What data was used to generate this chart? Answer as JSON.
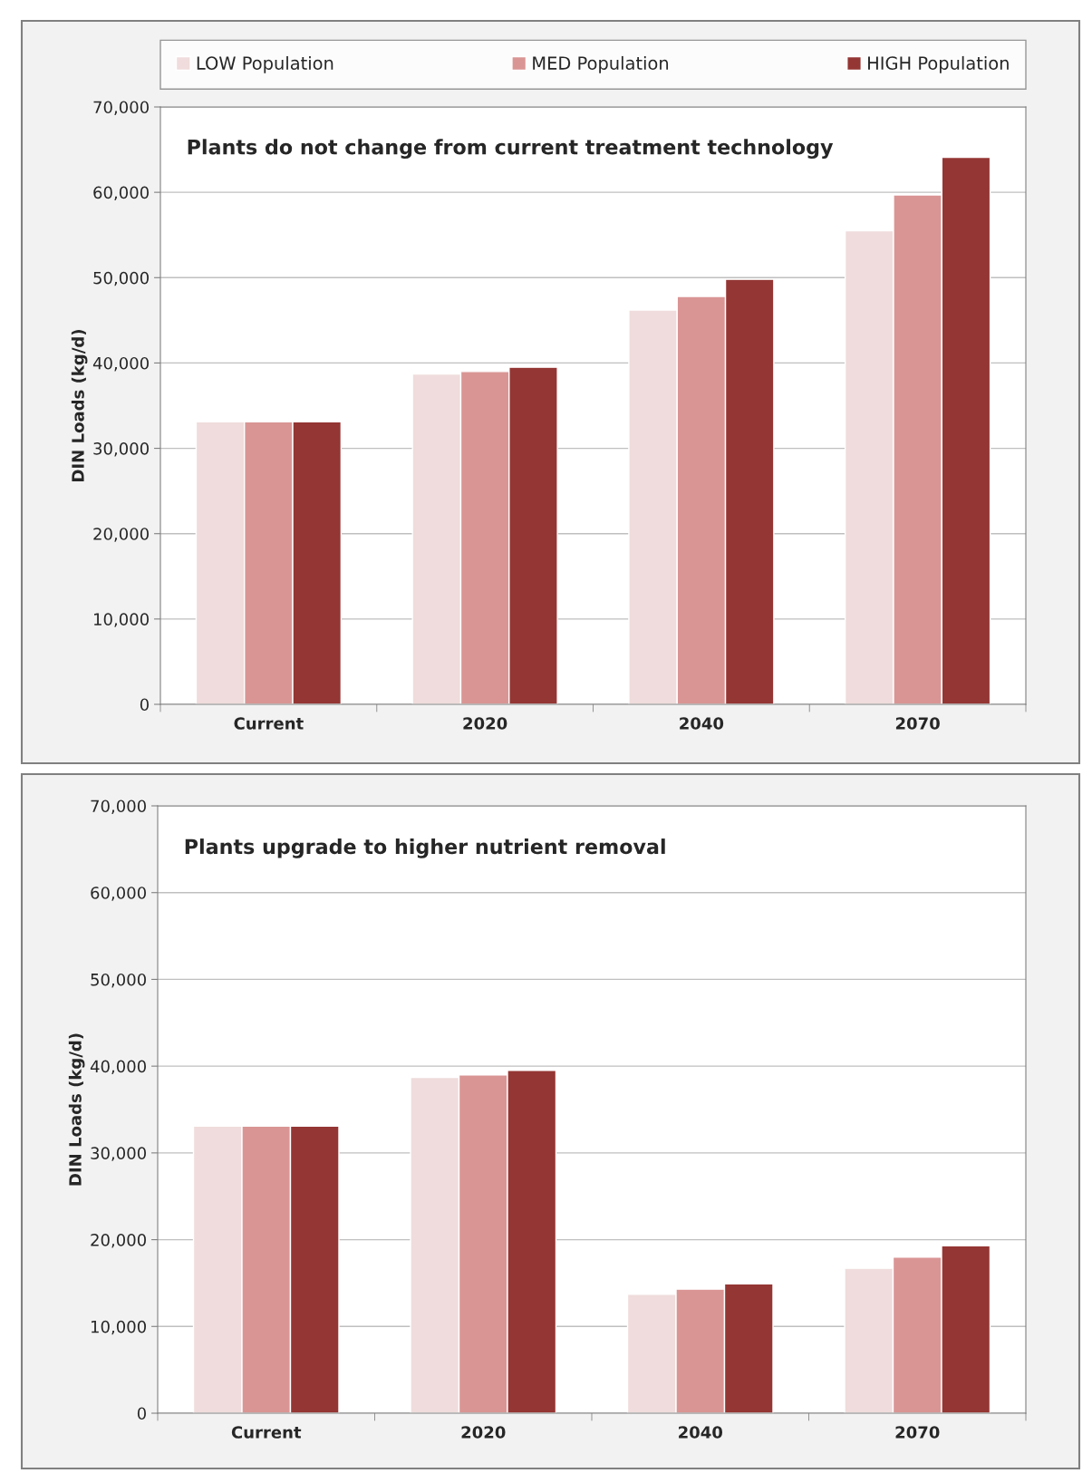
{
  "chart_data": [
    {
      "type": "bar",
      "title": "Plants do not change from current treatment technology",
      "ylabel": "DIN Loads (kg/d)",
      "categories": [
        "Current",
        "2020",
        "2040",
        "2070"
      ],
      "series": [
        {
          "name": "LOW Population",
          "color": "#f0dcdc",
          "values": [
            33100,
            38700,
            46200,
            55500
          ]
        },
        {
          "name": "MED Population",
          "color": "#d99594",
          "values": [
            33100,
            39000,
            47800,
            59700
          ]
        },
        {
          "name": "HIGH Population",
          "color": "#943634",
          "values": [
            33100,
            39500,
            49800,
            64100
          ]
        }
      ],
      "ylim": [
        0,
        70000
      ],
      "yticks": [
        0,
        {
          "value": 10000,
          "label": "10,000"
        },
        {
          "value": 20000,
          "label": "20,000"
        },
        {
          "value": 30000,
          "label": "30,000"
        },
        {
          "value": 40000,
          "label": "40,000"
        },
        {
          "value": 50000,
          "label": "50,000"
        },
        {
          "value": 60000,
          "label": "60,000"
        },
        {
          "value": 70000,
          "label": "70,000"
        }
      ],
      "grid": "y",
      "legend": "top"
    },
    {
      "type": "bar",
      "title": "Plants upgrade to higher nutrient removal",
      "ylabel": "DIN Loads (kg/d)",
      "categories": [
        "Current",
        "2020",
        "2040",
        "2070"
      ],
      "series": [
        {
          "color": "#f0dcdc",
          "values": [
            33100,
            38700,
            13700,
            16700
          ]
        },
        {
          "color": "#d99594",
          "values": [
            33100,
            39000,
            14300,
            18000
          ]
        },
        {
          "color": "#943634",
          "values": [
            33100,
            39500,
            14900,
            19300
          ]
        }
      ],
      "ylim": [
        0,
        70000
      ],
      "yticks": [
        0,
        {
          "value": 10000,
          "label": "10,000"
        },
        {
          "value": 20000,
          "label": "20,000"
        },
        {
          "value": 30000,
          "label": "30,000"
        },
        {
          "value": 40000,
          "label": "40,000"
        },
        {
          "value": 50000,
          "label": "50,000"
        },
        {
          "value": 60000,
          "label": "60,000"
        },
        {
          "value": 70000,
          "label": "70,000"
        }
      ],
      "grid": "y"
    }
  ]
}
